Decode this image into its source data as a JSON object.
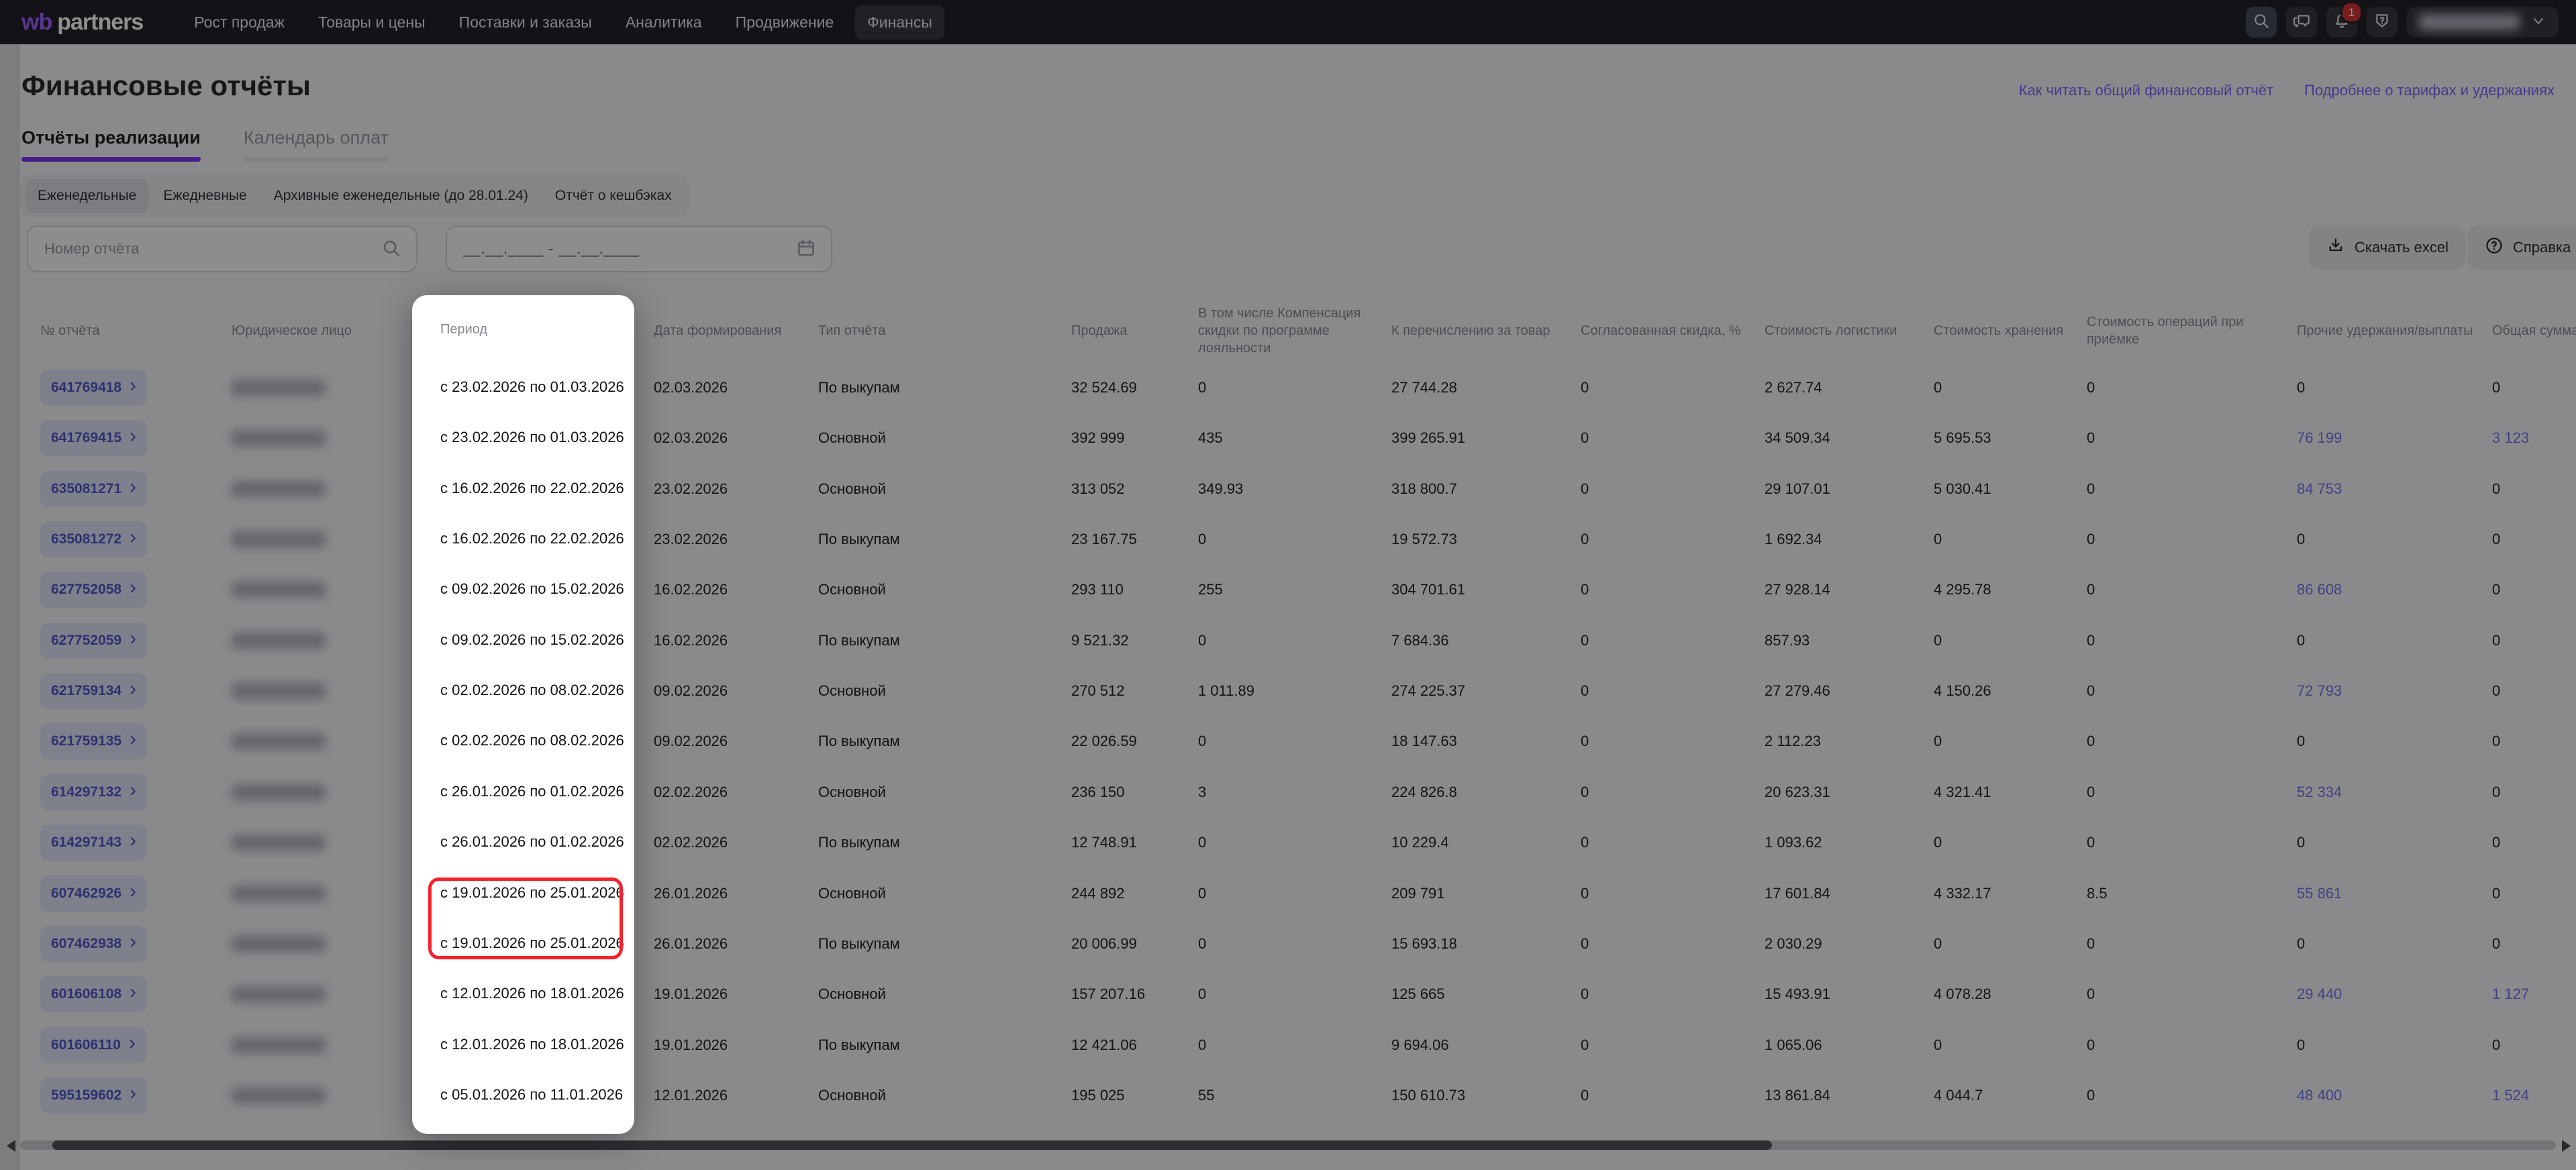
{
  "nav": {
    "logo_wb": "wb",
    "logo_partners": "partners",
    "items": [
      {
        "label": "Рост продаж",
        "active": false
      },
      {
        "label": "Товары и цены",
        "active": false
      },
      {
        "label": "Поставки и заказы",
        "active": false
      },
      {
        "label": "Аналитика",
        "active": false
      },
      {
        "label": "Продвижение",
        "active": false
      },
      {
        "label": "Финансы",
        "active": true
      }
    ],
    "icons": [
      "search-icon",
      "chat-icon",
      "bell-icon",
      "shield-help-icon",
      "chevron-down-icon"
    ],
    "notification_count": "1"
  },
  "page": {
    "title": "Финансовые отчёты",
    "links": [
      "Как читать общий финансовый отчёт",
      "Подробнее о тарифах и удержаниях"
    ],
    "tabs": [
      {
        "label": "Отчёты реализации",
        "active": true
      },
      {
        "label": "Календарь оплат",
        "active": false
      }
    ],
    "chips": [
      {
        "label": "Еженедельные",
        "selected": true
      },
      {
        "label": "Ежедневные",
        "selected": false
      },
      {
        "label": "Архивные еженедельные (до 28.01.24)",
        "selected": false
      },
      {
        "label": "Отчёт о кешбэках",
        "selected": false
      }
    ],
    "filters": {
      "report_number_placeholder": "Номер отчёта",
      "date_range_placeholder": "__.__.____ - __.__.____"
    },
    "actions": {
      "download_label": "Скачать excel",
      "help_label": "Справка"
    }
  },
  "table": {
    "columns": [
      "№ отчёта",
      "Юридическое лицо",
      "Период",
      "Дата формирования",
      "Тип отчёта",
      "Продажа",
      "В том числе Компенсация скидки по программе лояльности",
      "К перечислению за товар",
      "Согласованная скидка, %",
      "Стоимость логистики",
      "Стоимость хранения",
      "Стоимость операций при приёмке",
      "Прочие удержания/выплаты",
      "Общая сумма"
    ],
    "rows": [
      {
        "num": "641769418",
        "period": "с 23.02.2026 по 01.03.2026",
        "date": "02.03.2026",
        "type": "По выкупам",
        "sale": "32 524.69",
        "comp": "0",
        "transfer": "27 744.28",
        "discount": "0",
        "logistics": "2 627.74",
        "storage": "0",
        "acceptance": "0",
        "other": "0",
        "total": "0"
      },
      {
        "num": "641769415",
        "period": "с 23.02.2026 по 01.03.2026",
        "date": "02.03.2026",
        "type": "Основной",
        "sale": "392 999",
        "comp": "435",
        "transfer": "399 265.91",
        "discount": "0",
        "logistics": "34 509.34",
        "storage": "5 695.53",
        "acceptance": "0",
        "other": "76 199",
        "total": "3 123"
      },
      {
        "num": "635081271",
        "period": "с 16.02.2026 по 22.02.2026",
        "date": "23.02.2026",
        "type": "Основной",
        "sale": "313 052",
        "comp": "349.93",
        "transfer": "318 800.7",
        "discount": "0",
        "logistics": "29 107.01",
        "storage": "5 030.41",
        "acceptance": "0",
        "other": "84 753",
        "total": "0"
      },
      {
        "num": "635081272",
        "period": "с 16.02.2026 по 22.02.2026",
        "date": "23.02.2026",
        "type": "По выкупам",
        "sale": "23 167.75",
        "comp": "0",
        "transfer": "19 572.73",
        "discount": "0",
        "logistics": "1 692.34",
        "storage": "0",
        "acceptance": "0",
        "other": "0",
        "total": "0"
      },
      {
        "num": "627752058",
        "period": "с 09.02.2026 по 15.02.2026",
        "date": "16.02.2026",
        "type": "Основной",
        "sale": "293 110",
        "comp": "255",
        "transfer": "304 701.61",
        "discount": "0",
        "logistics": "27 928.14",
        "storage": "4 295.78",
        "acceptance": "0",
        "other": "86 608",
        "total": "0"
      },
      {
        "num": "627752059",
        "period": "с 09.02.2026 по 15.02.2026",
        "date": "16.02.2026",
        "type": "По выкупам",
        "sale": "9 521.32",
        "comp": "0",
        "transfer": "7 684.36",
        "discount": "0",
        "logistics": "857.93",
        "storage": "0",
        "acceptance": "0",
        "other": "0",
        "total": "0"
      },
      {
        "num": "621759134",
        "period": "с 02.02.2026 по 08.02.2026",
        "date": "09.02.2026",
        "type": "Основной",
        "sale": "270 512",
        "comp": "1 011.89",
        "transfer": "274 225.37",
        "discount": "0",
        "logistics": "27 279.46",
        "storage": "4 150.26",
        "acceptance": "0",
        "other": "72 793",
        "total": "0"
      },
      {
        "num": "621759135",
        "period": "с 02.02.2026 по 08.02.2026",
        "date": "09.02.2026",
        "type": "По выкупам",
        "sale": "22 026.59",
        "comp": "0",
        "transfer": "18 147.63",
        "discount": "0",
        "logistics": "2 112.23",
        "storage": "0",
        "acceptance": "0",
        "other": "0",
        "total": "0"
      },
      {
        "num": "614297132",
        "period": "с 26.01.2026 по 01.02.2026",
        "date": "02.02.2026",
        "type": "Основной",
        "sale": "236 150",
        "comp": "3",
        "transfer": "224 826.8",
        "discount": "0",
        "logistics": "20 623.31",
        "storage": "4 321.41",
        "acceptance": "0",
        "other": "52 334",
        "total": "0"
      },
      {
        "num": "614297143",
        "period": "с 26.01.2026 по 01.02.2026",
        "date": "02.02.2026",
        "type": "По выкупам",
        "sale": "12 748.91",
        "comp": "0",
        "transfer": "10 229.4",
        "discount": "0",
        "logistics": "1 093.62",
        "storage": "0",
        "acceptance": "0",
        "other": "0",
        "total": "0"
      },
      {
        "num": "607462926",
        "period": "с 19.01.2026 по 25.01.2026",
        "date": "26.01.2026",
        "type": "Основной",
        "sale": "244 892",
        "comp": "0",
        "transfer": "209 791",
        "discount": "0",
        "logistics": "17 601.84",
        "storage": "4 332.17",
        "acceptance": "8.5",
        "other": "55 861",
        "total": "0"
      },
      {
        "num": "607462938",
        "period": "с 19.01.2026 по 25.01.2026",
        "date": "26.01.2026",
        "type": "По выкупам",
        "sale": "20 006.99",
        "comp": "0",
        "transfer": "15 693.18",
        "discount": "0",
        "logistics": "2 030.29",
        "storage": "0",
        "acceptance": "0",
        "other": "0",
        "total": "0"
      },
      {
        "num": "601606108",
        "period": "с 12.01.2026 по 18.01.2026",
        "date": "19.01.2026",
        "type": "Основной",
        "sale": "157 207.16",
        "comp": "0",
        "transfer": "125 665",
        "discount": "0",
        "logistics": "15 493.91",
        "storage": "4 078.28",
        "acceptance": "0",
        "other": "29 440",
        "total": "1 127"
      },
      {
        "num": "601606110",
        "period": "с 12.01.2026 по 18.01.2026",
        "date": "19.01.2026",
        "type": "По выкупам",
        "sale": "12 421.06",
        "comp": "0",
        "transfer": "9 694.06",
        "discount": "0",
        "logistics": "1 065.06",
        "storage": "0",
        "acceptance": "0",
        "other": "0",
        "total": "0"
      },
      {
        "num": "595159602",
        "period": "с 05.01.2026 по 11.01.2026",
        "date": "12.01.2026",
        "type": "Основной",
        "sale": "195 025",
        "comp": "55",
        "transfer": "150 610.73",
        "discount": "0",
        "logistics": "13 861.84",
        "storage": "4 044.7",
        "acceptance": "0",
        "other": "48 400",
        "total": "1 524"
      }
    ]
  },
  "highlight": {
    "spotlight_column": "Период",
    "red_box_row_indices": [
      10,
      11
    ]
  },
  "colors": {
    "accent_purple": "#7c2ff2",
    "link_purple": "#7e5ef8",
    "cell_link_indigo": "#6d72e4",
    "highlight_red": "#f5222d",
    "badge_red": "#cf2e31"
  }
}
